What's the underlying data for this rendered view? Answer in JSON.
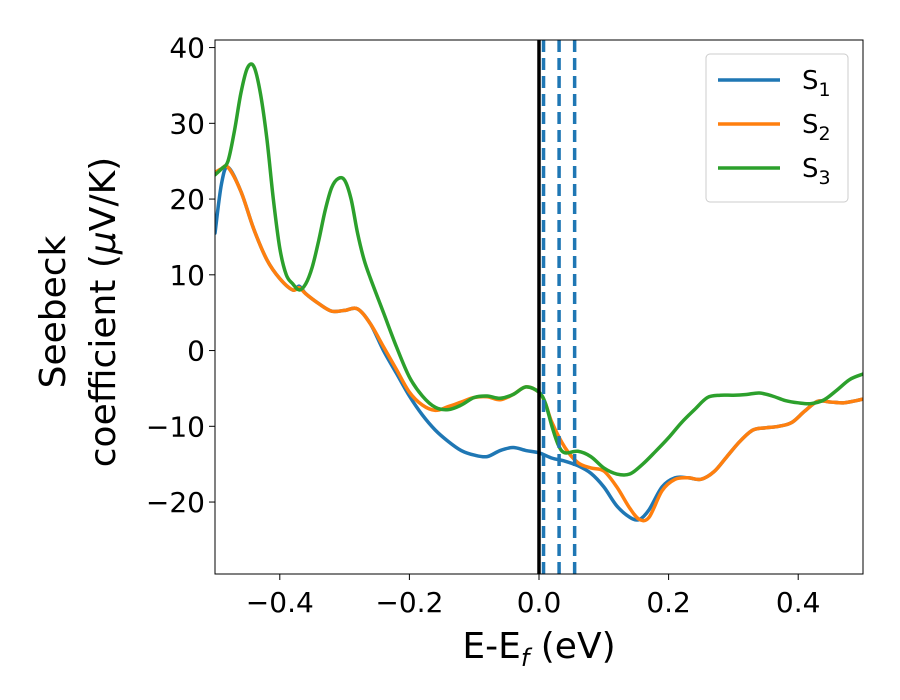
{
  "chart_data": {
    "type": "line",
    "title": "",
    "xlabel": {
      "main": "E-E",
      "sub": "f",
      "unit": " (eV)"
    },
    "ylabel": {
      "line1": "Seebeck",
      "line2_prefix": "coefficient  (",
      "mu": "μ",
      "line2_suffix": "V/K)"
    },
    "xlim": [
      -0.5,
      0.5
    ],
    "ylim": [
      -29.5,
      41
    ],
    "xticks": [
      -0.4,
      -0.2,
      0.0,
      0.2,
      0.4
    ],
    "xtick_labels": [
      "−0.4",
      "−0.2",
      "0.0",
      "0.2",
      "0.4"
    ],
    "yticks": [
      -20,
      -10,
      0,
      10,
      20,
      30,
      40
    ],
    "ytick_labels": [
      "−20",
      "−10",
      "0",
      "10",
      "20",
      "30",
      "40"
    ],
    "grid": false,
    "legend_position": "top-right",
    "fermi_line": {
      "x": 0.0,
      "color": "#000000"
    },
    "dashed_lines": {
      "x": [
        0.007,
        0.031,
        0.055
      ],
      "color": "#1f77b4"
    },
    "series": [
      {
        "name": "S",
        "sub": "1",
        "color": "#1f77b4",
        "x": [
          -0.5,
          -0.49,
          -0.48,
          -0.46,
          -0.44,
          -0.42,
          -0.4,
          -0.38,
          -0.37,
          -0.36,
          -0.34,
          -0.32,
          -0.3,
          -0.28,
          -0.26,
          -0.24,
          -0.22,
          -0.2,
          -0.18,
          -0.16,
          -0.14,
          -0.12,
          -0.1,
          -0.08,
          -0.06,
          -0.04,
          -0.02,
          0.0,
          0.02,
          0.04,
          0.06,
          0.08,
          0.1,
          0.12,
          0.14,
          0.155,
          0.17,
          0.19,
          0.21,
          0.23,
          0.25,
          0.27,
          0.29,
          0.31,
          0.33,
          0.35,
          0.37,
          0.39,
          0.41,
          0.43,
          0.45,
          0.47,
          0.49,
          0.5
        ],
        "y": [
          15.5,
          22,
          24.2,
          21,
          16,
          12,
          9.5,
          8,
          8.5,
          7.5,
          6.2,
          5.2,
          5.3,
          5.5,
          3.5,
          0,
          -3,
          -6,
          -8.5,
          -10.5,
          -12,
          -13.2,
          -13.8,
          -14,
          -13.2,
          -12.8,
          -13.2,
          -13.5,
          -14.2,
          -14.6,
          -15.2,
          -16.2,
          -18,
          -20.5,
          -22,
          -22.3,
          -21,
          -18,
          -16.8,
          -16.8,
          -17,
          -16,
          -14,
          -12,
          -10.5,
          -10.2,
          -10,
          -9.5,
          -8,
          -6.7,
          -6.8,
          -6.9,
          -6.6,
          -6.4
        ]
      },
      {
        "name": "S",
        "sub": "2",
        "color": "#ff7f0e",
        "x": [
          -0.5,
          -0.49,
          -0.48,
          -0.46,
          -0.44,
          -0.42,
          -0.4,
          -0.38,
          -0.37,
          -0.36,
          -0.34,
          -0.32,
          -0.3,
          -0.28,
          -0.26,
          -0.24,
          -0.22,
          -0.2,
          -0.18,
          -0.16,
          -0.14,
          -0.12,
          -0.1,
          -0.08,
          -0.06,
          -0.04,
          -0.02,
          0.0,
          0.01,
          0.02,
          0.04,
          0.06,
          0.08,
          0.1,
          0.12,
          0.14,
          0.155,
          0.17,
          0.19,
          0.21,
          0.23,
          0.25,
          0.27,
          0.29,
          0.31,
          0.33,
          0.35,
          0.37,
          0.39,
          0.41,
          0.43,
          0.45,
          0.47,
          0.49,
          0.5
        ],
        "y": [
          23.5,
          24,
          24.2,
          21,
          16,
          12,
          9.5,
          8,
          8.3,
          7.5,
          6.2,
          5.2,
          5.3,
          5.5,
          3.5,
          0.5,
          -2.5,
          -5.5,
          -7.2,
          -7.9,
          -7.4,
          -6.8,
          -6.2,
          -6.1,
          -6.5,
          -5.8,
          -4.8,
          -5.5,
          -7,
          -9.5,
          -12.8,
          -14.8,
          -15.5,
          -15.9,
          -18,
          -20.8,
          -22.3,
          -22,
          -18.5,
          -17,
          -16.8,
          -17,
          -16,
          -14,
          -12,
          -10.5,
          -10.2,
          -10,
          -9.5,
          -8,
          -6.7,
          -6.8,
          -6.9,
          -6.6,
          -6.4
        ]
      },
      {
        "name": "S",
        "sub": "3",
        "color": "#2ca02c",
        "x": [
          -0.5,
          -0.49,
          -0.48,
          -0.47,
          -0.46,
          -0.45,
          -0.44,
          -0.43,
          -0.42,
          -0.41,
          -0.4,
          -0.39,
          -0.38,
          -0.37,
          -0.36,
          -0.35,
          -0.34,
          -0.33,
          -0.32,
          -0.31,
          -0.3,
          -0.29,
          -0.28,
          -0.27,
          -0.26,
          -0.24,
          -0.22,
          -0.2,
          -0.18,
          -0.16,
          -0.14,
          -0.12,
          -0.1,
          -0.08,
          -0.06,
          -0.04,
          -0.02,
          0.0,
          0.01,
          0.02,
          0.03,
          0.04,
          0.06,
          0.08,
          0.1,
          0.12,
          0.14,
          0.16,
          0.18,
          0.2,
          0.22,
          0.24,
          0.26,
          0.28,
          0.3,
          0.32,
          0.34,
          0.36,
          0.38,
          0.4,
          0.42,
          0.44,
          0.46,
          0.48,
          0.5
        ],
        "y": [
          23.2,
          24,
          25,
          29,
          34,
          37.3,
          37.5,
          34,
          28,
          20,
          13.5,
          10,
          8.8,
          8,
          8.8,
          11,
          14.5,
          18.5,
          21.5,
          22.7,
          22.5,
          20,
          15.5,
          12,
          9.5,
          5,
          0.5,
          -3.5,
          -6,
          -7.5,
          -7.8,
          -7.2,
          -6.2,
          -6,
          -6.3,
          -5.8,
          -4.8,
          -5.5,
          -7,
          -10,
          -12.5,
          -13.5,
          -13.3,
          -14,
          -15.5,
          -16.3,
          -16.3,
          -15,
          -13.3,
          -11.5,
          -9.5,
          -7.8,
          -6.2,
          -5.9,
          -5.9,
          -5.8,
          -5.6,
          -6,
          -6.6,
          -6.9,
          -7,
          -6.5,
          -5.2,
          -3.8,
          -3.1
        ]
      }
    ]
  }
}
